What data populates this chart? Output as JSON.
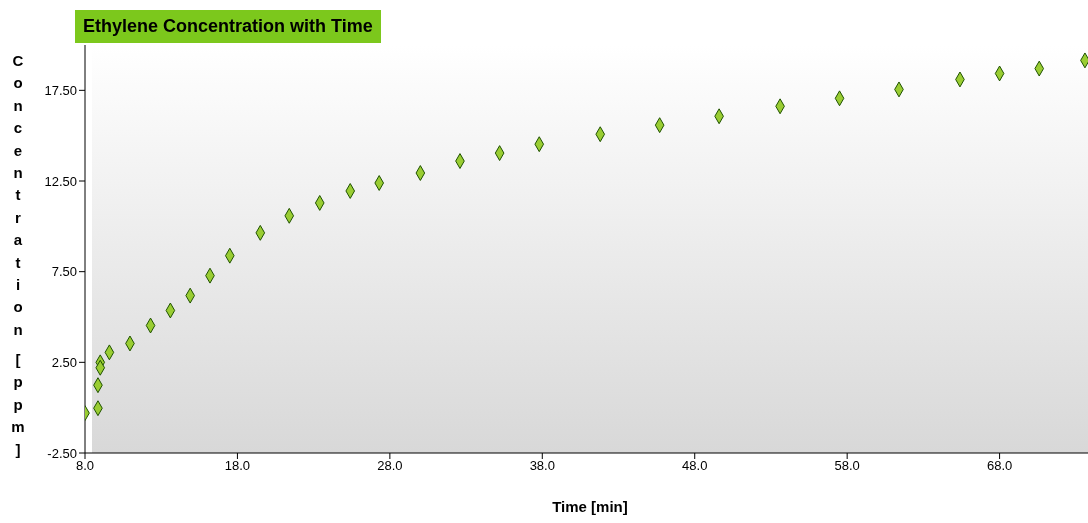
{
  "chart_data": {
    "type": "scatter",
    "title": "Ethylene Concentration with Time",
    "xlabel": "Time [min]",
    "ylabel": "Concentration [ppm]",
    "x": [
      8.0,
      8.85,
      8.85,
      9.0,
      9.0,
      9.6,
      10.95,
      12.3,
      13.6,
      14.9,
      16.2,
      17.5,
      19.5,
      21.4,
      23.4,
      25.4,
      27.3,
      30.0,
      32.6,
      35.2,
      37.8,
      41.8,
      45.7,
      49.6,
      53.6,
      57.5,
      61.4,
      65.4,
      68.0,
      70.6,
      73.6
    ],
    "series": [
      {
        "color": "#9acd32",
        "values": [
          -0.3,
          -0.03,
          1.24,
          2.5,
          2.2,
          3.05,
          3.54,
          4.53,
          5.36,
          6.18,
          7.28,
          8.38,
          9.64,
          10.58,
          11.29,
          11.95,
          12.39,
          12.94,
          13.6,
          14.04,
          14.53,
          15.08,
          15.58,
          16.07,
          16.62,
          17.06,
          17.55,
          18.1,
          18.43,
          18.7,
          19.15
        ]
      }
    ],
    "marker": "diamond",
    "grid": false,
    "legend": false,
    "xlim": [
      8,
      73.8
    ],
    "xticks": [
      {
        "value": 8,
        "label": "8.0"
      },
      {
        "value": 18,
        "label": "18.0"
      },
      {
        "value": 28,
        "label": "28.0"
      },
      {
        "value": 38,
        "label": "38.0"
      },
      {
        "value": 48,
        "label": "48.0"
      },
      {
        "value": 58,
        "label": "58.0"
      },
      {
        "value": 68,
        "label": "68.0"
      }
    ],
    "ylim": [
      -2.5,
      20
    ],
    "yticks": [
      {
        "value": -2.5,
        "label": "-2.50"
      },
      {
        "value": 2.5,
        "label": "2.50"
      },
      {
        "value": 7.5,
        "label": "7.50"
      },
      {
        "value": 12.5,
        "label": "12.50"
      },
      {
        "value": 17.5,
        "label": "17.50"
      }
    ]
  }
}
